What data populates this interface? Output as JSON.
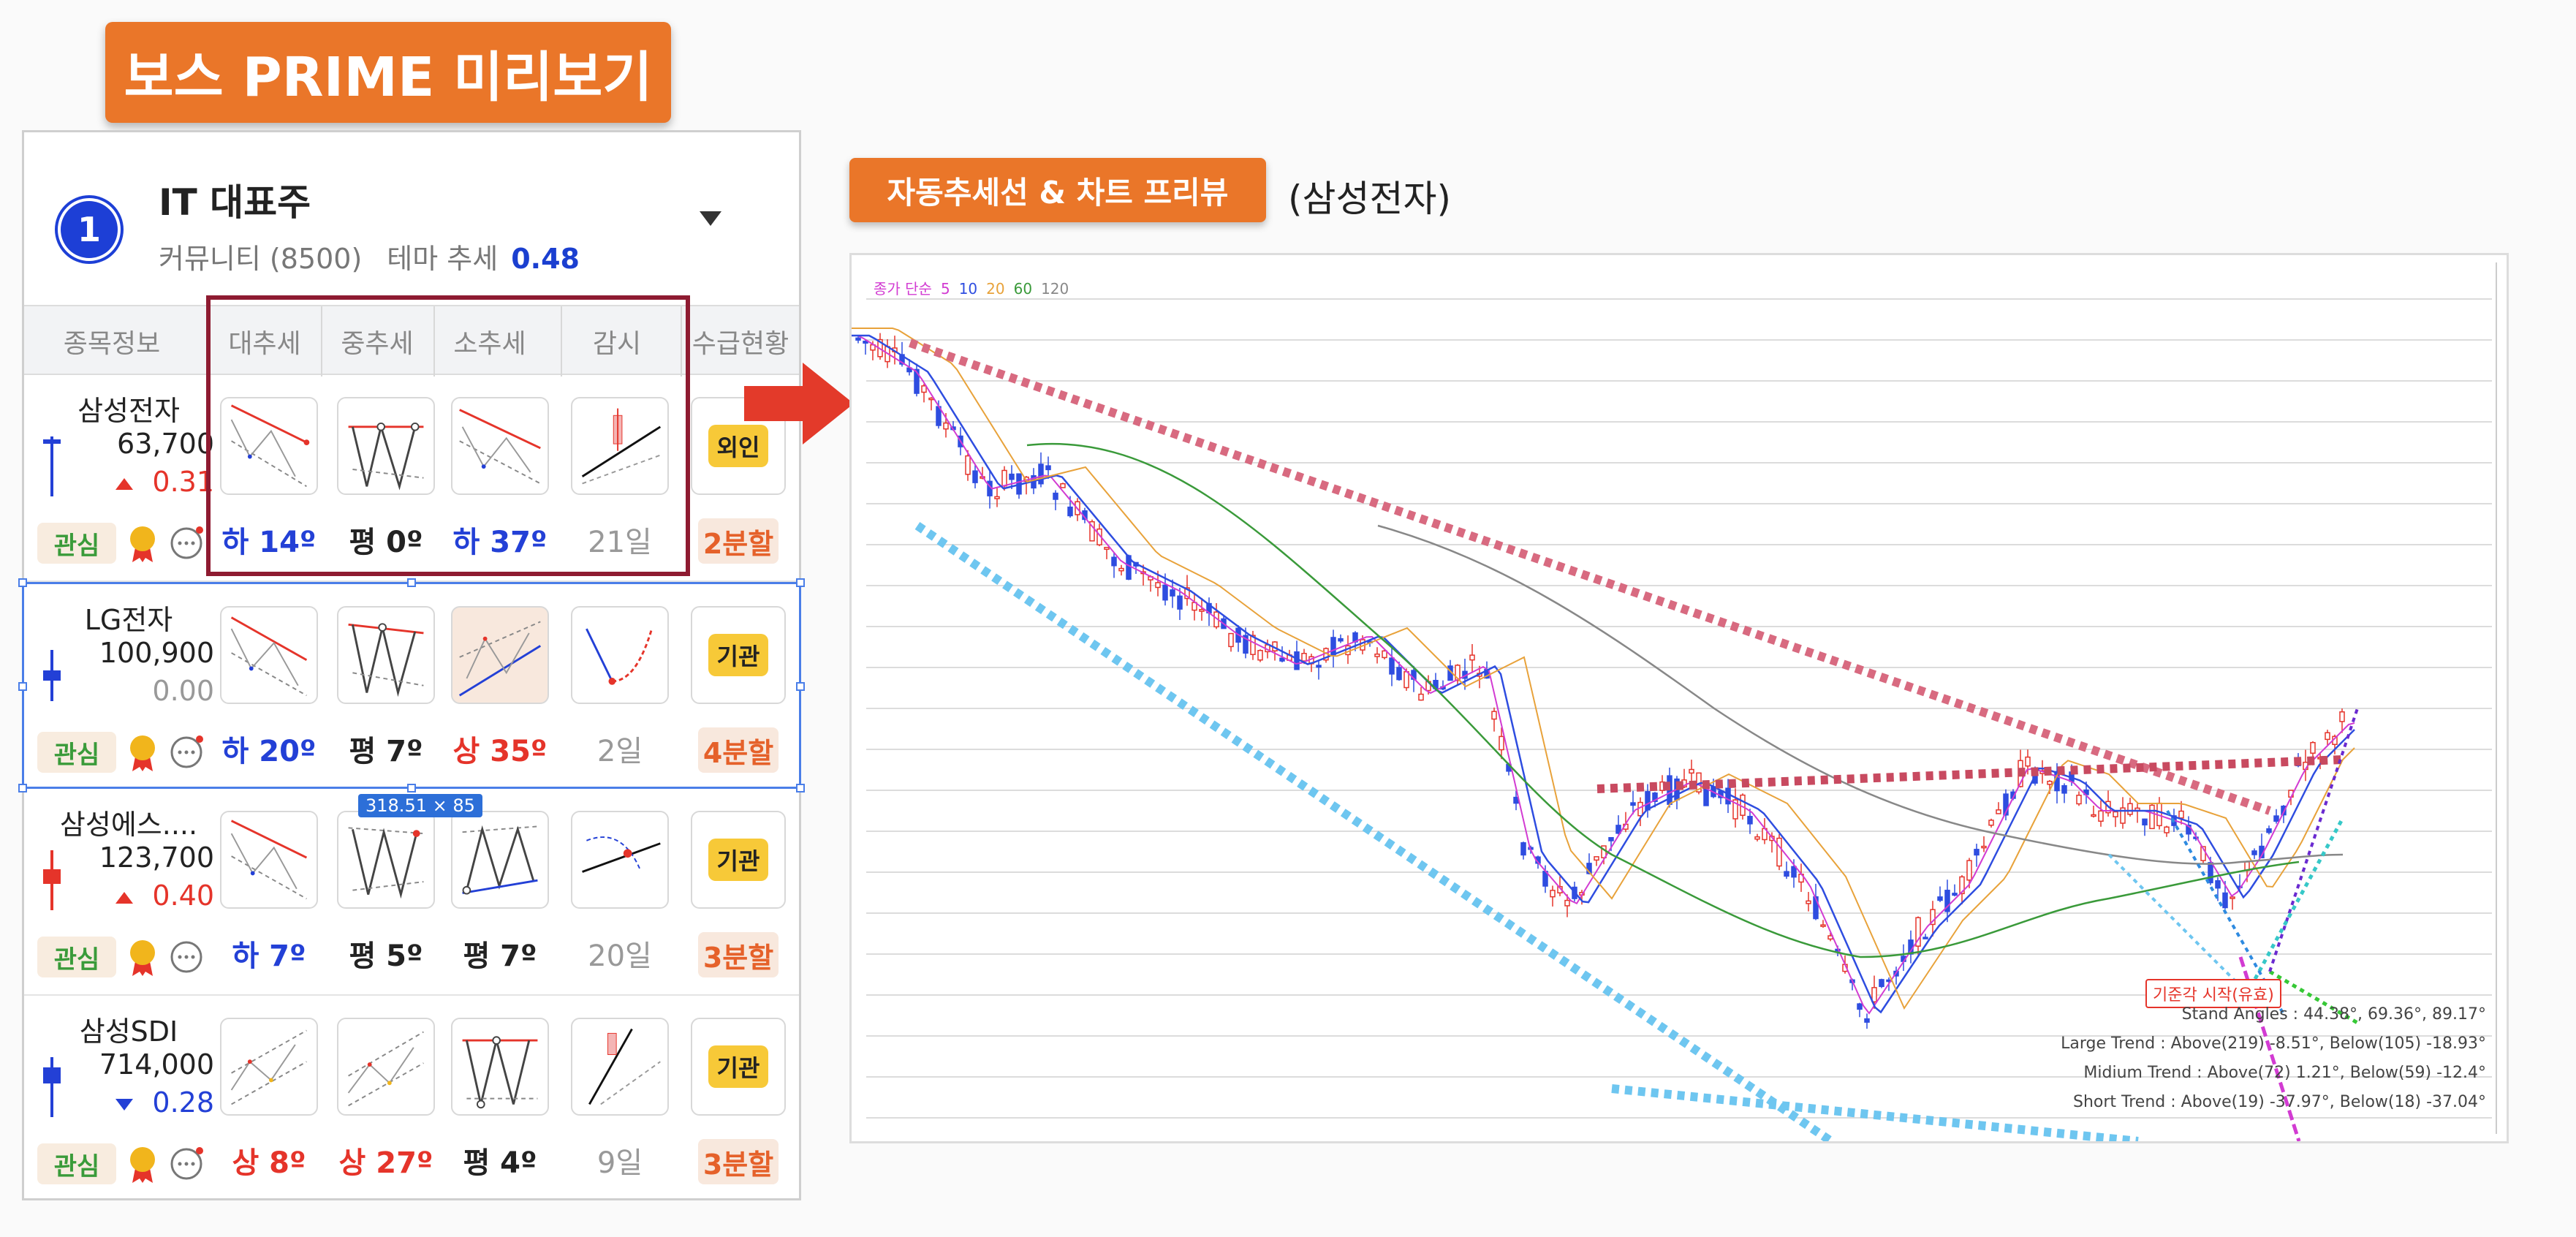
{
  "banner": {
    "title": "보스 PRIME 미리보기"
  },
  "theme": {
    "rank": "1",
    "name": "IT 대표주",
    "community_label": "커뮤니티 (8500)",
    "trend_label": "테마 추세",
    "trend_value": "0.48"
  },
  "columns": [
    "종목정보",
    "대추세",
    "중추세",
    "소추세",
    "감시",
    "수급현황"
  ],
  "rows": [
    {
      "name": "삼성전자",
      "price": "63,700",
      "change": "0.31",
      "direction": "up",
      "candle": "up",
      "trends": [
        {
          "label": "하 14º",
          "dir": "down"
        },
        {
          "label": "평 0º",
          "dir": "flat"
        },
        {
          "label": "하 37º",
          "dir": "down"
        }
      ],
      "watch_days": "21일",
      "investor": "외인",
      "split": "2분할",
      "watch_btn": "관심"
    },
    {
      "name": "LG전자",
      "price": "100,900",
      "change": "0.00",
      "direction": "flat",
      "candle": "flat",
      "trends": [
        {
          "label": "하 20º",
          "dir": "down"
        },
        {
          "label": "평 7º",
          "dir": "flat"
        },
        {
          "label": "상 35º",
          "dir": "up"
        }
      ],
      "watch_days": "2일",
      "investor": "기관",
      "split": "4분할",
      "watch_btn": "관심"
    },
    {
      "name": "삼성에스....",
      "price": "123,700",
      "change": "0.40",
      "direction": "up",
      "candle": "up",
      "trends": [
        {
          "label": "하 7º",
          "dir": "down"
        },
        {
          "label": "평 5º",
          "dir": "flat"
        },
        {
          "label": "평 7º",
          "dir": "flat"
        }
      ],
      "watch_days": "20일",
      "investor": "기관",
      "split": "3분할",
      "watch_btn": "관심"
    },
    {
      "name": "삼성SDI",
      "price": "714,000",
      "change": "0.28",
      "direction": "down",
      "candle": "down",
      "trends": [
        {
          "label": "상 8º",
          "dir": "up"
        },
        {
          "label": "상 27º",
          "dir": "up"
        },
        {
          "label": "평 4º",
          "dir": "flat"
        }
      ],
      "watch_days": "9일",
      "investor": "기관",
      "split": "3분할",
      "watch_btn": "관심"
    }
  ],
  "size_tag": "318.51 × 85",
  "preview": {
    "banner": "자동추세선 & 차트 프리뷰",
    "caption": "(삼성전자)",
    "legend": {
      "prefix": "종가 단순",
      "periods": [
        "5",
        "10",
        "20",
        "60",
        "120"
      ],
      "colors": [
        "#d23bd2",
        "#2e4de0",
        "#e8a23a",
        "#3a9a3a",
        "#888888"
      ]
    },
    "start_tag": "기준각 시작(유효)",
    "stats": [
      "Stand Angles : 44.38°, 69.36°, 89.17°",
      "Large Trend : Above(219) -8.51°, Below(105) -18.93°",
      "Midium Trend : Above(72) 1.21°, Below(59) -12.4°",
      "Short Trend : Above(19) -37.97°, Below(18) -37.04°"
    ]
  }
}
